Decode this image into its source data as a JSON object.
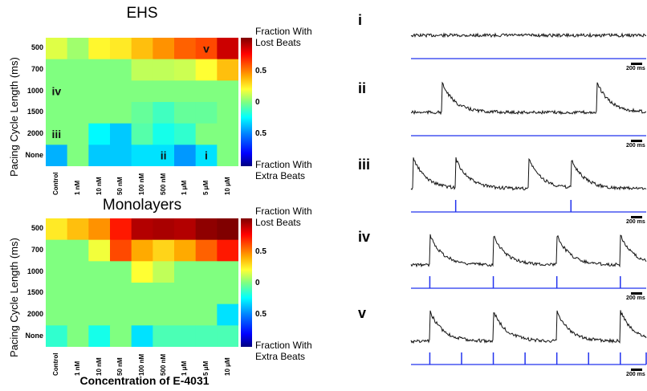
{
  "xlabel": "Concentration of E-4031",
  "ylabel": "Pacing Cycle Length (ms)",
  "colorbar": {
    "top_label": "Fraction With Lost Beats",
    "bottom_label": "Fraction With Extra Beats",
    "ticks": [
      "0.5",
      "0",
      "0.5"
    ]
  },
  "columns": [
    "Control",
    "1 nM",
    "10 nM",
    "50 nM",
    "100 nM",
    "500 nM",
    "1 μM",
    "5 μM",
    "10 μM"
  ],
  "rows": [
    "500",
    "700",
    "1000",
    "1500",
    "2000",
    "None"
  ],
  "chart_data": [
    {
      "type": "heatmap",
      "title": "EHS",
      "values": [
        [
          0.15,
          0.05,
          0.22,
          0.25,
          0.35,
          0.45,
          0.55,
          0.6,
          0.85
        ],
        [
          0,
          0,
          0,
          0,
          0.1,
          0.1,
          0.12,
          0.2,
          0.35
        ],
        [
          0,
          0,
          0,
          0,
          0,
          0,
          0,
          0,
          0
        ],
        [
          0,
          0,
          0,
          0,
          -0.05,
          -0.12,
          -0.05,
          -0.05,
          0
        ],
        [
          0,
          0,
          -0.25,
          -0.35,
          -0.08,
          -0.2,
          -0.15,
          0,
          0
        ],
        [
          -0.4,
          0,
          -0.35,
          -0.35,
          -0.3,
          -0.3,
          -0.45,
          -0.3,
          0
        ]
      ],
      "annotations": [
        {
          "text": "v",
          "row": 0,
          "col": 7
        },
        {
          "text": "iv",
          "row": 2,
          "col": 0
        },
        {
          "text": "iii",
          "row": 4,
          "col": 0
        },
        {
          "text": "ii",
          "row": 5,
          "col": 5
        },
        {
          "text": "i",
          "row": 5,
          "col": 7
        }
      ]
    },
    {
      "type": "heatmap",
      "title": "Monolayers",
      "values": [
        [
          0.25,
          0.35,
          0.45,
          0.7,
          0.9,
          0.92,
          0.9,
          0.97,
          1.0
        ],
        [
          0,
          0,
          0.18,
          0.6,
          0.4,
          0.3,
          0.4,
          0.55,
          0.7
        ],
        [
          0,
          0,
          0,
          0,
          0.2,
          0.1,
          0,
          0,
          0
        ],
        [
          0,
          0,
          0,
          0,
          0,
          0,
          0,
          0,
          0
        ],
        [
          0,
          0,
          0,
          0,
          0,
          0,
          0,
          0,
          -0.3
        ],
        [
          -0.15,
          0,
          -0.2,
          0,
          -0.3,
          -0.1,
          -0.1,
          -0.1,
          -0.1
        ]
      ],
      "annotations": []
    }
  ],
  "traces": [
    {
      "label": "i",
      "scale": "200 ms",
      "peaks": [],
      "pulses": []
    },
    {
      "label": "ii",
      "scale": "200 ms",
      "peaks": [
        0.13,
        0.79
      ],
      "pulses": []
    },
    {
      "label": "iii",
      "scale": "200 ms",
      "peaks": [
        0.01,
        0.19,
        0.5,
        0.68
      ],
      "pulses": [
        0.19,
        0.68
      ]
    },
    {
      "label": "iv",
      "scale": "200 ms",
      "peaks": [
        0.08,
        0.35,
        0.62,
        0.89
      ],
      "pulses": [
        0.08,
        0.35,
        0.62,
        0.89
      ]
    },
    {
      "label": "v",
      "scale": "200 ms",
      "peaks": [
        0.08,
        0.35,
        0.62,
        0.89
      ],
      "pulses": [
        0.08,
        0.215,
        0.35,
        0.485,
        0.62,
        0.755,
        0.89,
        1.0
      ]
    }
  ]
}
